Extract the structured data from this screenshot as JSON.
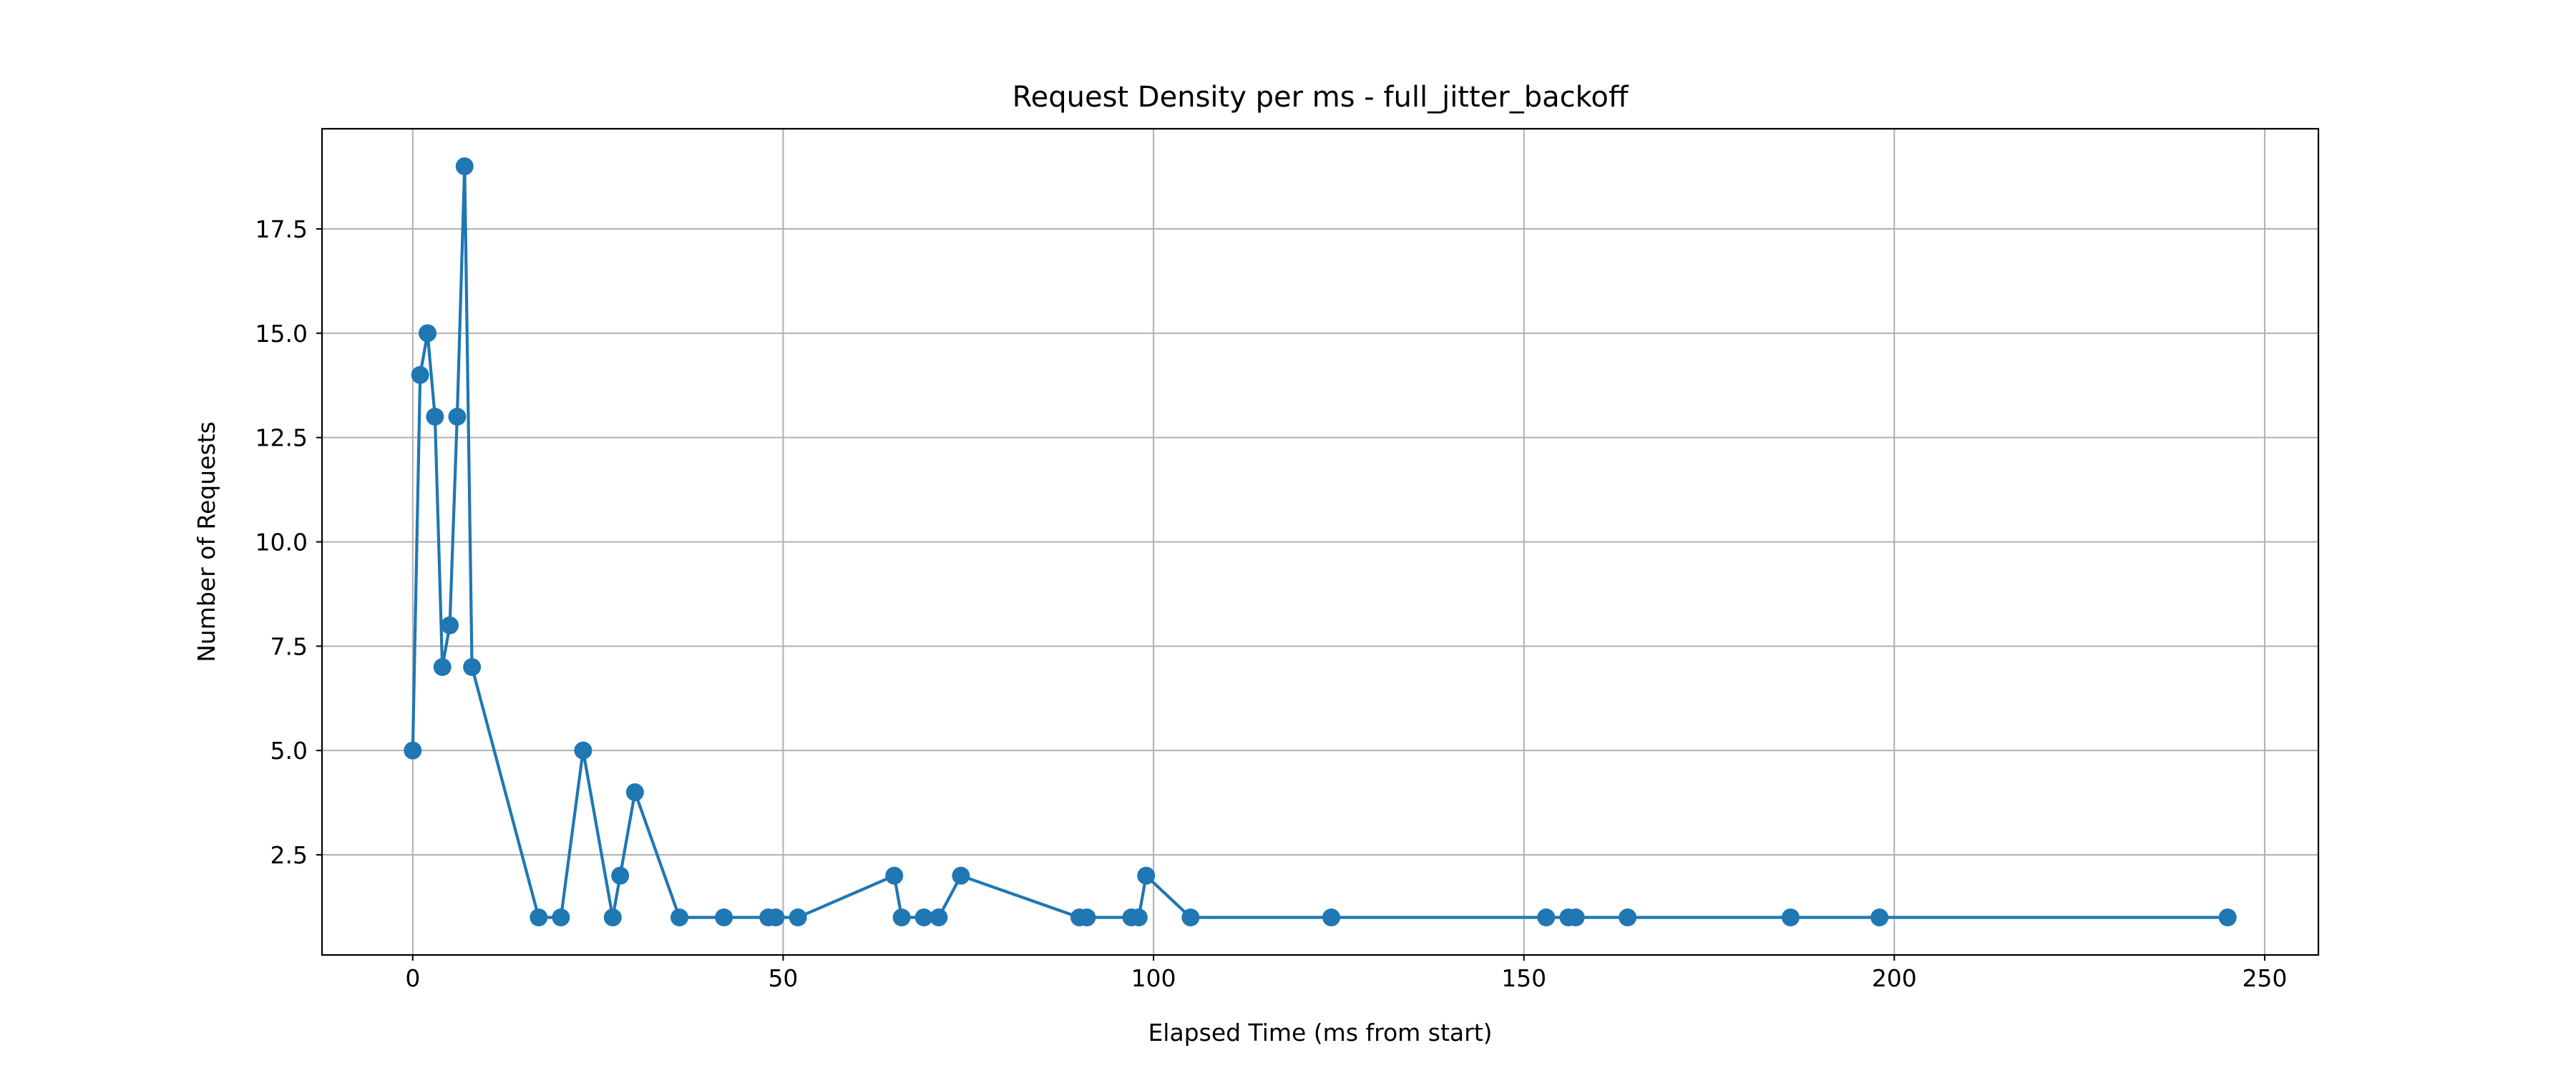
{
  "chart_data": {
    "type": "line",
    "title": "Request Density per ms - full_jitter_backoff",
    "xlabel": "Elapsed Time (ms from start)",
    "ylabel": "Number of Requests",
    "xlim": [
      -12.25,
      257.25
    ],
    "ylim": [
      0.1,
      19.9
    ],
    "x_ticks": [
      0,
      50,
      100,
      150,
      200,
      250
    ],
    "x_tick_labels": [
      "0",
      "50",
      "100",
      "150",
      "200",
      "250"
    ],
    "y_ticks": [
      2.5,
      5.0,
      7.5,
      10.0,
      12.5,
      15.0,
      17.5
    ],
    "y_tick_labels": [
      "2.5",
      "5.0",
      "7.5",
      "10.0",
      "12.5",
      "15.0",
      "17.5"
    ],
    "grid": true,
    "line_color": "#1f77b4",
    "series": [
      {
        "x": [
          0,
          1,
          2,
          3,
          4,
          5,
          6,
          7,
          8,
          17,
          20,
          23,
          27,
          28,
          30,
          36,
          42,
          48,
          49,
          52,
          65,
          66,
          69,
          71,
          74,
          90,
          91,
          97,
          98,
          99,
          105,
          124,
          153,
          156,
          157,
          164,
          186,
          198,
          245
        ],
        "y": [
          5,
          14,
          15,
          13,
          7,
          8,
          13,
          19,
          7,
          1,
          1,
          5,
          1,
          2,
          4,
          1,
          1,
          1,
          1,
          1,
          2,
          1,
          1,
          1,
          2,
          1,
          1,
          1,
          1,
          2,
          1,
          1,
          1,
          1,
          1,
          1,
          1,
          1,
          1
        ]
      }
    ]
  }
}
